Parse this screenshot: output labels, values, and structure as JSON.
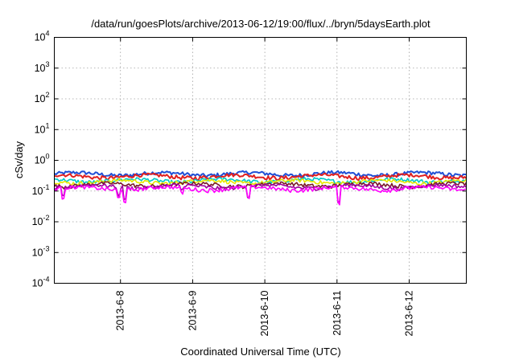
{
  "chart_data": {
    "type": "line",
    "title": "/data/run/goesPlots/archive/2013-06-12/19:00/flux/../bryn/5daysEarth.plot",
    "xlabel": "Coordinated Universal Time (UTC)",
    "ylabel": "cSv/day",
    "y_scale": "log",
    "ylim": [
      0.0001,
      10000
    ],
    "y_ticks": [
      {
        "base": "10",
        "exp": "-4",
        "value": 0.0001
      },
      {
        "base": "10",
        "exp": "-3",
        "value": 0.001
      },
      {
        "base": "10",
        "exp": "-2",
        "value": 0.01
      },
      {
        "base": "10",
        "exp": "-1",
        "value": 0.1
      },
      {
        "base": "10",
        "exp": "0",
        "value": 1
      },
      {
        "base": "10",
        "exp": "1",
        "value": 10
      },
      {
        "base": "10",
        "exp": "2",
        "value": 100
      },
      {
        "base": "10",
        "exp": "3",
        "value": 1000
      },
      {
        "base": "10",
        "exp": "4",
        "value": 10000
      }
    ],
    "xlim": [
      "2013-06-07T02:00",
      "2013-06-12T19:00"
    ],
    "x_ticks": [
      {
        "label": "2013-6-8",
        "value": "2013-06-08"
      },
      {
        "label": "2013-6-9",
        "value": "2013-06-09"
      },
      {
        "label": "2013-6-10",
        "value": "2013-06-10"
      },
      {
        "label": "2013-6-11",
        "value": "2013-06-11"
      },
      {
        "label": "2013-6-12",
        "value": "2013-06-12"
      }
    ],
    "grid": true,
    "legend": "none",
    "series": [
      {
        "color": "#1f4fd6",
        "level": 0.36
      },
      {
        "color": "#e02020",
        "level": 0.3
      },
      {
        "color": "#00c8c8",
        "level": 0.22
      },
      {
        "color": "#e8e800",
        "level": 0.2
      },
      {
        "color": "#7a1a2a",
        "level": 0.16
      },
      {
        "color": "#a000a0",
        "level": 0.14
      },
      {
        "color": "#ff00ff",
        "level": 0.12
      }
    ]
  }
}
